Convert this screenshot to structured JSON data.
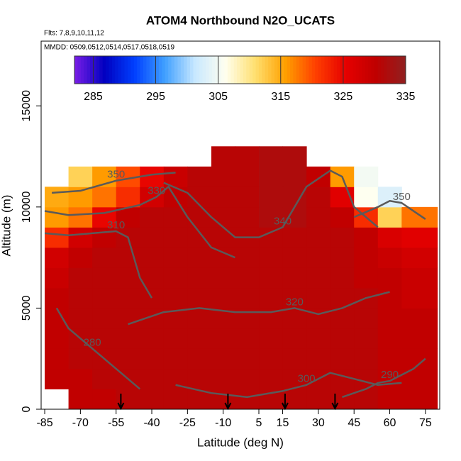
{
  "chart_data": {
    "type": "heatmap",
    "title": "ATOM4 Northbound N2O_UCATS",
    "subtitle": "Flts: 7,8,9,10,11,12",
    "note": "MMDD: 0509,0512,0514,0517,0518,0519",
    "x_label": "Latitude (deg N)",
    "y_label": "Altitude (m)",
    "xlim": [
      -86.5,
      81
    ],
    "ylim": [
      0,
      18200
    ],
    "xticks": [
      -85,
      -70,
      -55,
      -40,
      -25,
      -10,
      5,
      15,
      30,
      45,
      60,
      75
    ],
    "yticks": [
      0,
      5000,
      10000,
      15000
    ],
    "x_bins": [
      -85,
      -75,
      -65,
      -55,
      -45,
      -35,
      -25,
      -15,
      -5,
      5,
      15,
      25,
      35,
      45,
      55,
      65,
      80
    ],
    "y_bins": [
      0,
      1000,
      2000,
      3000,
      4000,
      5000,
      6000,
      7000,
      8000,
      9000,
      10000,
      11000,
      12000,
      13000
    ],
    "values": [
      [
        null,
        330,
        330,
        331,
        331,
        331,
        331,
        331,
        331,
        331,
        331,
        331,
        331,
        331,
        330,
        330
      ],
      [
        330,
        330,
        331,
        331,
        331,
        331,
        331,
        331,
        331,
        331,
        331,
        331,
        331,
        331,
        330,
        330
      ],
      [
        330,
        331,
        331,
        331,
        331,
        331,
        331,
        331,
        331,
        331,
        331,
        331,
        331,
        331,
        330,
        330
      ],
      [
        330,
        331,
        331,
        331,
        331,
        331,
        331,
        331,
        331,
        331,
        331,
        331,
        331,
        331,
        330,
        330
      ],
      [
        330,
        331,
        331,
        331,
        331,
        331,
        331,
        331,
        331,
        331,
        331,
        331,
        331,
        331,
        330,
        330
      ],
      [
        330,
        331,
        331,
        331,
        331,
        331,
        331,
        331,
        331,
        331,
        331,
        331,
        331,
        331,
        330,
        329
      ],
      [
        329,
        331,
        331,
        331,
        331,
        331,
        331,
        331,
        331,
        331,
        331,
        331,
        331,
        330,
        330,
        329
      ],
      [
        328,
        330,
        331,
        331,
        331,
        331,
        331,
        331,
        331,
        331,
        331,
        331,
        331,
        330,
        329,
        328
      ],
      [
        322,
        328,
        330,
        331,
        331,
        331,
        331,
        331,
        331,
        331,
        331,
        331,
        331,
        330,
        327,
        326
      ],
      [
        316,
        318,
        325,
        330,
        331,
        331,
        331,
        331,
        331,
        332,
        332,
        331,
        330,
        322,
        312,
        318
      ],
      [
        315,
        316,
        318,
        322,
        328,
        330,
        331,
        331,
        331,
        332,
        332,
        331,
        326,
        306,
        303,
        null
      ],
      [
        null,
        312,
        316,
        320,
        325,
        329,
        331,
        331,
        331,
        332,
        332,
        330,
        316,
        305,
        null,
        null
      ],
      [
        null,
        null,
        null,
        null,
        null,
        null,
        null,
        331,
        331,
        332,
        332,
        null,
        null,
        null,
        null,
        null
      ]
    ],
    "clim": [
      282,
      335
    ],
    "colormap": [
      "#7a1ee6",
      "#0000c0",
      "#0040ff",
      "#40a0ff",
      "#c8e8ff",
      "#fffff0",
      "#ffe070",
      "#ffa000",
      "#ff4000",
      "#e60000",
      "#c00000",
      "#902020"
    ],
    "colorbar_ticks": [
      285,
      295,
      305,
      315,
      325,
      335
    ],
    "contours": [
      {
        "level": 350,
        "x": [
          -82,
          -70,
          -55,
          -40,
          -30
        ],
        "y": [
          10700,
          10800,
          11300,
          11600,
          11700
        ]
      },
      {
        "level": 330,
        "x": [
          -85,
          -75,
          -60,
          -45,
          -38,
          -33,
          -25,
          -15,
          -5
        ],
        "y": [
          9800,
          9600,
          9700,
          10100,
          10500,
          11000,
          9500,
          8000,
          7500
        ]
      },
      {
        "level": 310,
        "x": [
          -85,
          -75,
          -65,
          -55,
          -50,
          -45,
          -40
        ],
        "y": [
          8700,
          8600,
          8700,
          8800,
          8500,
          6500,
          5500
        ]
      },
      {
        "level": 340,
        "x": [
          -35,
          -25,
          -15,
          -5,
          5,
          15,
          25,
          35,
          40,
          45,
          55
        ],
        "y": [
          11200,
          10700,
          9500,
          8500,
          8500,
          9000,
          11000,
          11800,
          11500,
          10000,
          9000
        ]
      },
      {
        "level": 320,
        "x": [
          -50,
          -35,
          -20,
          -5,
          10,
          20,
          30,
          40,
          50,
          60
        ],
        "y": [
          4200,
          4800,
          5000,
          4800,
          4800,
          5000,
          4700,
          5000,
          5500,
          5800
        ]
      },
      {
        "level": 300,
        "x": [
          -30,
          -15,
          0,
          15,
          25,
          35,
          45,
          55,
          65
        ],
        "y": [
          1200,
          800,
          600,
          900,
          1200,
          1800,
          1500,
          1200,
          1300
        ]
      },
      {
        "level": 290,
        "x": [
          40,
          50,
          55,
          60,
          70,
          75
        ],
        "y": [
          600,
          1000,
          1300,
          1400,
          2000,
          2500
        ]
      },
      {
        "level": 280,
        "x": [
          -80,
          -75,
          -65,
          -55,
          -45
        ],
        "y": [
          5000,
          4000,
          3000,
          2000,
          1000
        ]
      },
      {
        "level": 350,
        "x": [
          45,
          55,
          60,
          65,
          70,
          75
        ],
        "y": [
          9500,
          10000,
          10300,
          10200,
          9800,
          9400
        ]
      }
    ],
    "flight_markers_x": [
      -53,
      -8,
      16,
      37
    ]
  }
}
